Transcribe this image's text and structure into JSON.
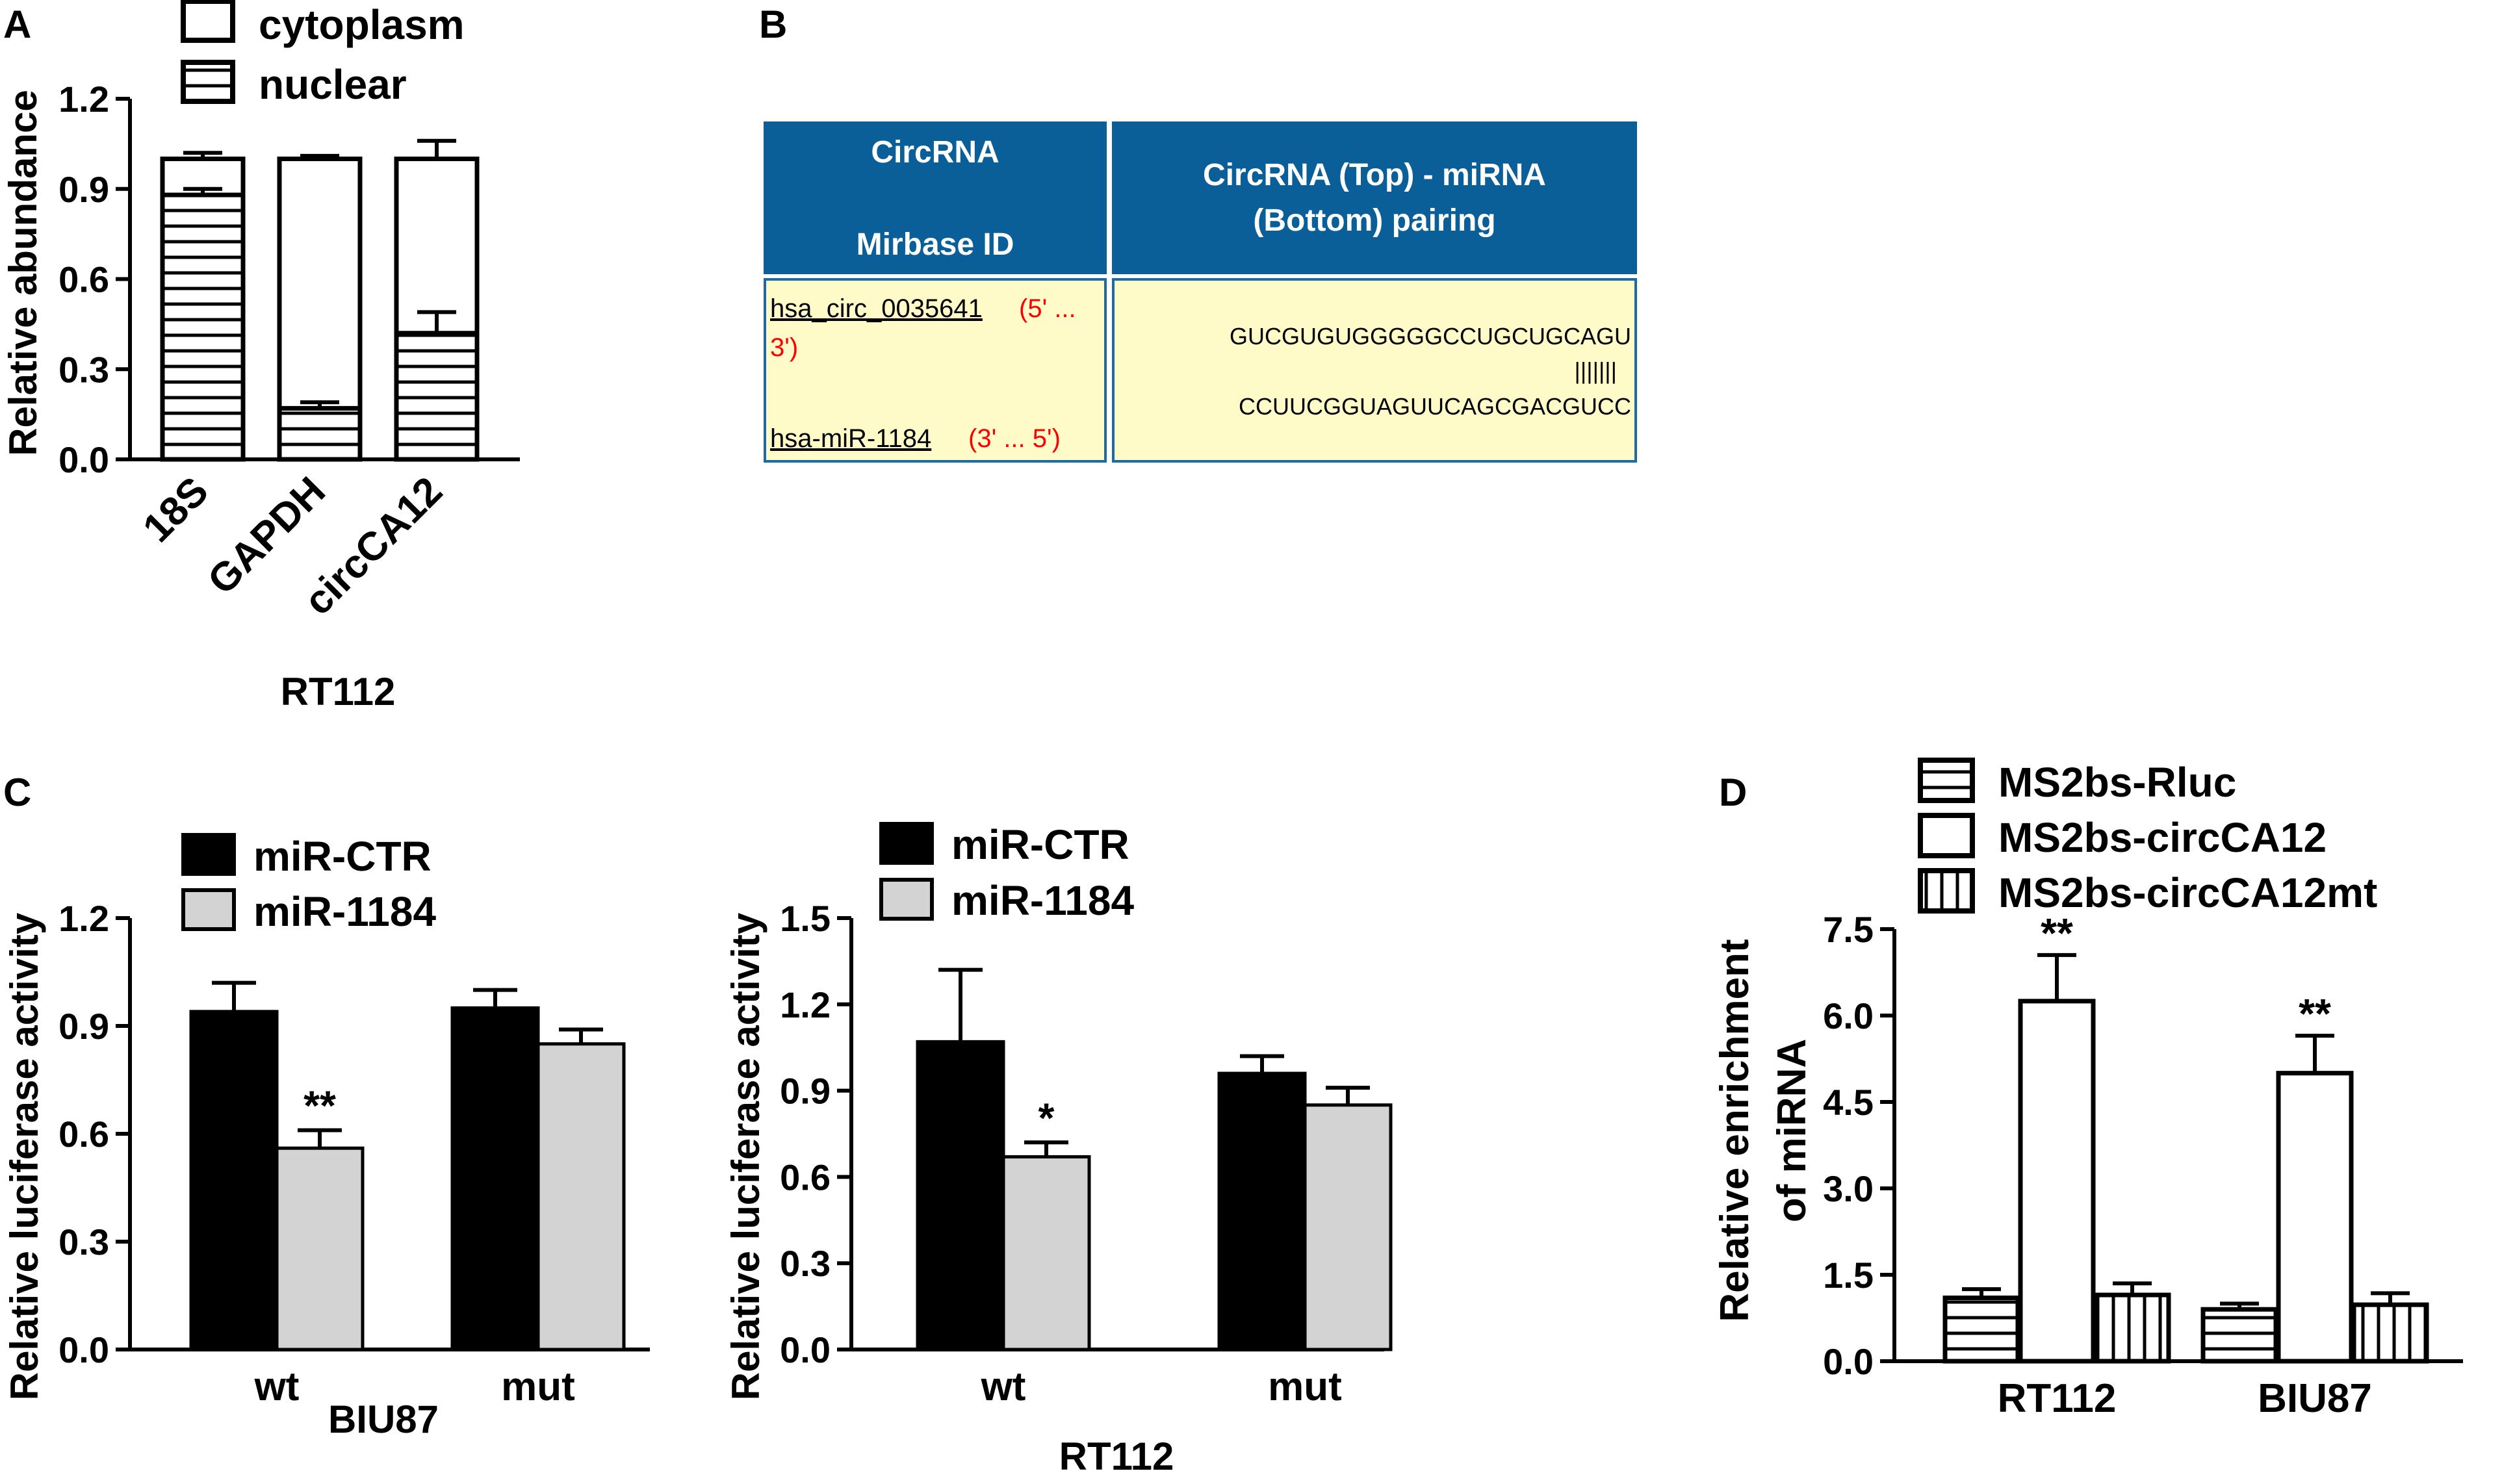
{
  "panels": {
    "A": "A",
    "B": "B",
    "C": "C",
    "D": "D"
  },
  "colors": {
    "header_blue": "#0b5f98",
    "cell_yellow": "#fefbc8",
    "cell_border": "#1e6aa5",
    "sequence_red": "#ff0000",
    "miR_CTR": "#000000",
    "miR_1184": "#d3d3d3"
  },
  "table_b": {
    "header_left_line1": "CircRNA",
    "header_left_line2": "Mirbase ID",
    "header_right_line1": "CircRNA (Top) - miRNA",
    "header_right_line2": "(Bottom) pairing",
    "circ_id": "hsa_circ_0035641",
    "circ_dir_a": "(5' ...",
    "circ_dir_b": "3')",
    "mirna_id": "hsa-miR-1184",
    "mirna_dir": "(3' ... 5')",
    "seq_top": "GUCGUGUGGGGGCCUGCUGCAGU",
    "seq_pairs": "|||||||",
    "seq_bottom": "CCUUCGGUAGUUCAGCGACGUCC"
  },
  "chart_data": [
    {
      "id": "A",
      "type": "bar",
      "stacked": true,
      "title": "",
      "ylabel": "Relative abundance",
      "xlabel": "RT112",
      "categories": [
        "18S",
        "GAPDH",
        "circCA12"
      ],
      "ylim": [
        0,
        1.2
      ],
      "yticks": [
        "0.0",
        "0.3",
        "0.6",
        "0.9",
        "1.2"
      ],
      "series": [
        {
          "name": "nuclear",
          "pattern": "horizontal-stripes",
          "values": [
            0.88,
            0.17,
            0.42
          ],
          "errors": [
            0.02,
            0.02,
            0.07
          ]
        },
        {
          "name": "cytoplasm",
          "pattern": "open",
          "values": [
            0.12,
            0.83,
            0.58
          ],
          "errors": [
            0.02,
            0.01,
            0.06
          ]
        }
      ],
      "legend": [
        "cytoplasm",
        "nuclear"
      ],
      "legend_position": "top"
    },
    {
      "id": "C1",
      "type": "bar",
      "title": "",
      "ylabel": "Relative luciferase activity",
      "xlabel": "BIU87",
      "categories": [
        "wt",
        "mut"
      ],
      "ylim": [
        0,
        1.2
      ],
      "yticks": [
        "0.0",
        "0.3",
        "0.6",
        "0.9",
        "1.2"
      ],
      "series": [
        {
          "name": "miR-CTR",
          "values": [
            0.94,
            0.95
          ],
          "errors": [
            0.08,
            0.05
          ]
        },
        {
          "name": "miR-1184",
          "values": [
            0.56,
            0.85
          ],
          "errors": [
            0.05,
            0.04
          ]
        }
      ],
      "annotations": [
        {
          "category": "wt",
          "series": "miR-1184",
          "text": "**"
        }
      ],
      "legend_position": "top-left"
    },
    {
      "id": "C2",
      "type": "bar",
      "title": "",
      "ylabel": "Relative luciferase activity",
      "xlabel": "RT112",
      "categories": [
        "wt",
        "mut"
      ],
      "ylim": [
        0,
        1.5
      ],
      "yticks": [
        "0.0",
        "0.3",
        "0.6",
        "0.9",
        "1.2",
        "1.5"
      ],
      "series": [
        {
          "name": "miR-CTR",
          "values": [
            1.07,
            0.96
          ],
          "errors": [
            0.25,
            0.06
          ]
        },
        {
          "name": "miR-1184",
          "values": [
            0.67,
            0.85
          ],
          "errors": [
            0.05,
            0.06
          ]
        }
      ],
      "annotations": [
        {
          "category": "wt",
          "series": "miR-1184",
          "text": "*"
        }
      ],
      "legend_position": "top-left"
    },
    {
      "id": "D",
      "type": "bar",
      "title": "",
      "ylabel_line1": "Relative enrichment",
      "ylabel_line2": "of miRNA",
      "xlabel": "",
      "categories": [
        "RT112",
        "BIU87"
      ],
      "ylim": [
        0,
        7.5
      ],
      "yticks": [
        "0.0",
        "1.5",
        "3.0",
        "4.5",
        "6.0",
        "7.5"
      ],
      "series": [
        {
          "name": "MS2bs-Rluc",
          "pattern": "horizontal-stripes",
          "values": [
            1.1,
            0.9
          ],
          "errors": [
            0.15,
            0.1
          ]
        },
        {
          "name": "MS2bs-circCA12",
          "pattern": "open",
          "values": [
            6.25,
            5.0
          ],
          "errors": [
            0.8,
            0.65
          ]
        },
        {
          "name": "MS2bs-circCA12mt",
          "pattern": "vertical-stripes",
          "values": [
            1.15,
            0.98
          ],
          "errors": [
            0.2,
            0.2
          ]
        }
      ],
      "annotations": [
        {
          "category": "RT112",
          "series": "MS2bs-circCA12",
          "text": "**"
        },
        {
          "category": "BIU87",
          "series": "MS2bs-circCA12",
          "text": "**"
        }
      ],
      "legend_position": "top"
    }
  ]
}
